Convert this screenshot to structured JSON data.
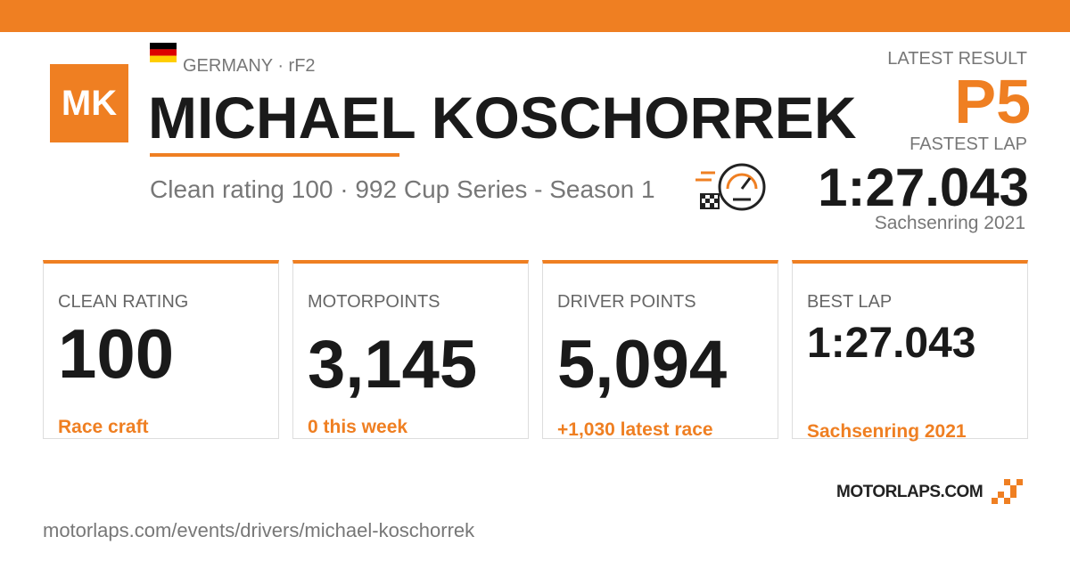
{
  "header": {
    "initials": "MK",
    "origin": "GERMANY · rF2",
    "name": "MICHAEL KOSCHORREK",
    "subtitle": "Clean rating 100 · 992 Cup Series - Season 1"
  },
  "latest": {
    "result_label": "LATEST RESULT",
    "result": "P5",
    "lap_label": "FASTEST LAP",
    "lap": "1:27.043",
    "track": "Sachsenring 2021"
  },
  "cards": [
    {
      "label": "CLEAN RATING",
      "value": "100",
      "note": "Race craft"
    },
    {
      "label": "MOTORPOINTS",
      "value": "3,145",
      "note": "0 this week"
    },
    {
      "label": "DRIVER POINTS",
      "value": "5,094",
      "note": "+1,030 latest race"
    },
    {
      "label": "BEST LAP",
      "value": "1:27.043",
      "note": "Sachsenring 2021"
    }
  ],
  "footer": {
    "brand": "MOTORLAPS.COM",
    "url": "motorlaps.com/events/drivers/michael-koschorrek"
  }
}
